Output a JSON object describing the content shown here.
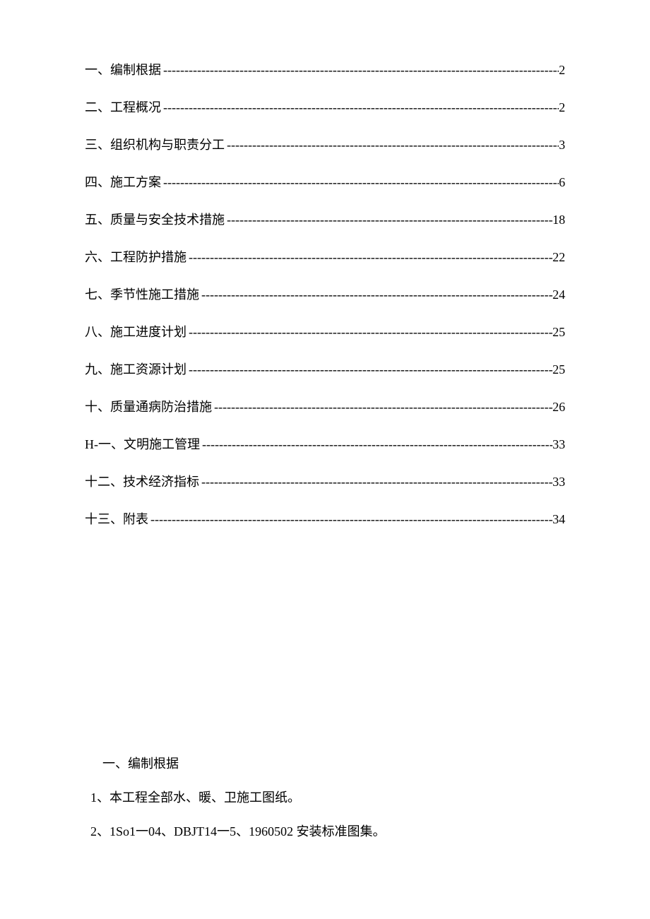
{
  "toc": {
    "entries": [
      {
        "title": "一、编制根据",
        "page": "2"
      },
      {
        "title": "二、工程概况",
        "page": "2"
      },
      {
        "title": "三、组织机构与职责分工",
        "page": "3"
      },
      {
        "title": "四、施工方案",
        "page": "6"
      },
      {
        "title": "五、质量与安全技术措施",
        "page": "18"
      },
      {
        "title": "六、工程防护措施",
        "page": "22"
      },
      {
        "title": "七、季节性施工措施",
        "page": "24"
      },
      {
        "title": "八、施工进度计划",
        "page": "25"
      },
      {
        "title": "九、施工资源计划",
        "page": "25"
      },
      {
        "title": "十、质量通病防治措施",
        "page": "26"
      },
      {
        "title": "H-一、文明施工管理",
        "page": "33"
      },
      {
        "title": "十二、技术经济指标",
        "page": "33"
      },
      {
        "title": "十三、附表",
        "page": "34"
      }
    ]
  },
  "body": {
    "heading": "一、编制根据",
    "line1": "1、本工程全部水、暖、卫施工图纸。",
    "line2": "2、1So1一04、DBJT14一5、1960502 安装标准图集。"
  },
  "leader_fill": "--------------------------------------------------------------------------------------------------"
}
